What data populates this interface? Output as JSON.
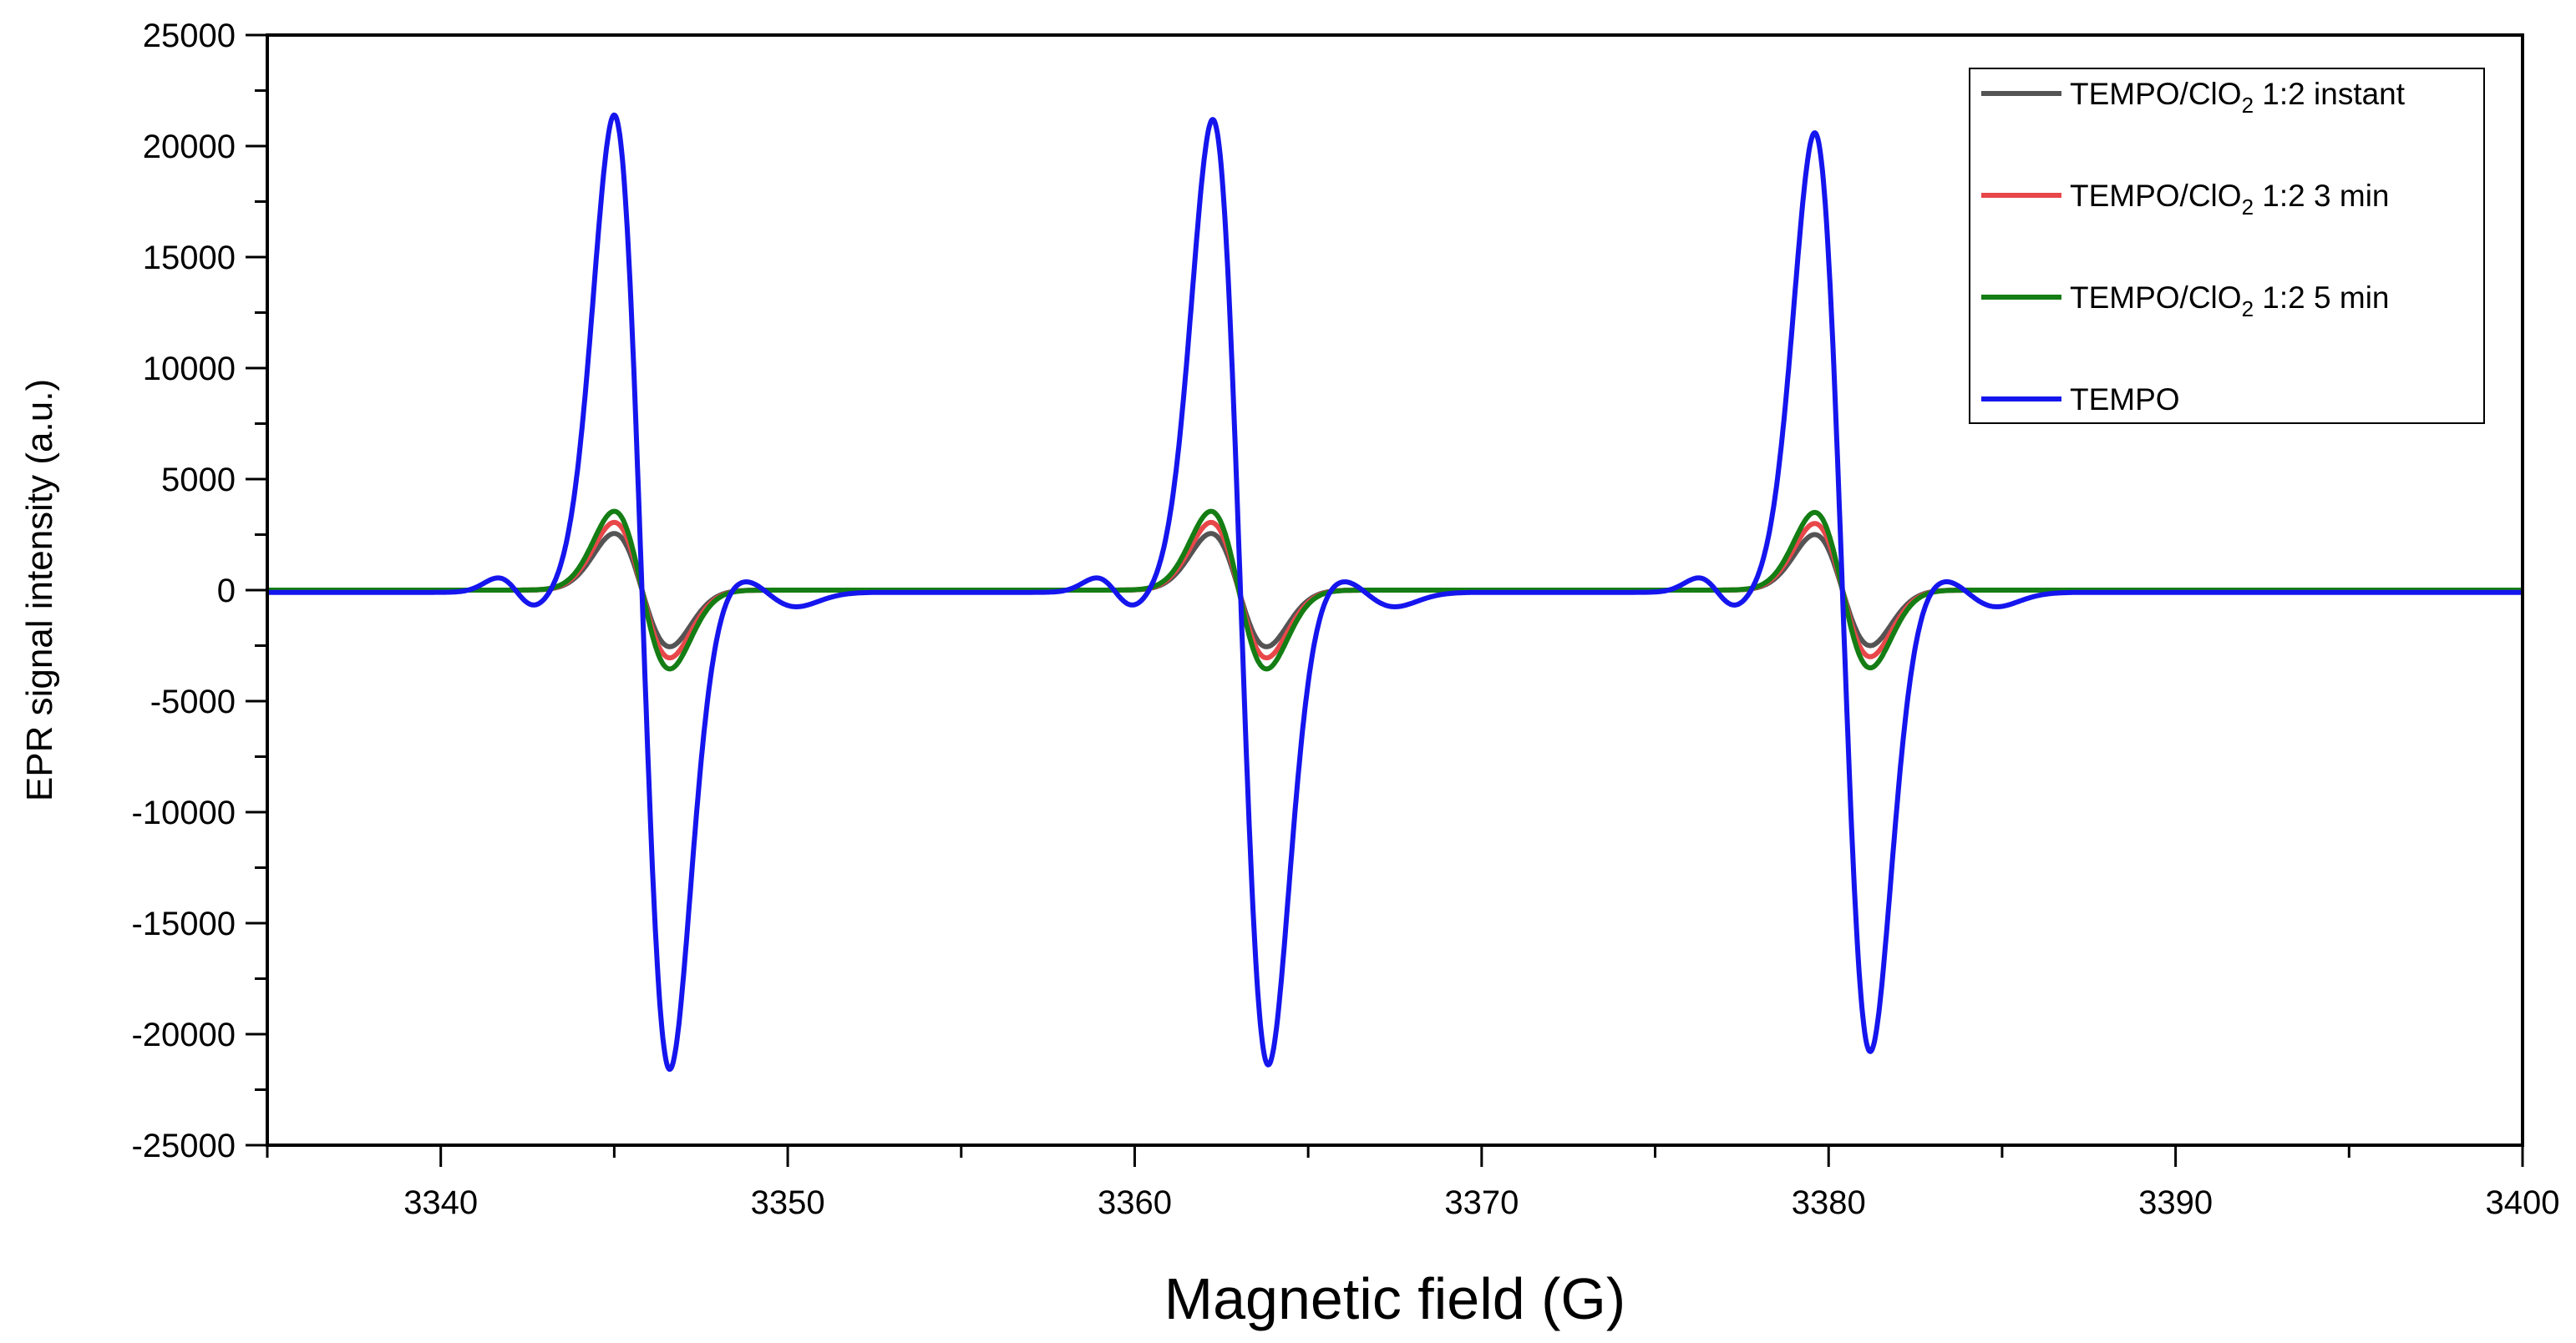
{
  "chart_data": {
    "type": "line",
    "title": "",
    "xlabel": "Magnetic field (G)",
    "ylabel": "EPR signal intensity (a.u.)",
    "xlim": [
      3335,
      3400
    ],
    "ylim": [
      -25000,
      25000
    ],
    "xticks": [
      3340,
      3350,
      3360,
      3370,
      3380,
      3390,
      3400
    ],
    "xtick_labels": [
      "3340",
      "3350",
      "3360",
      "3370",
      "3380",
      "3390",
      "3400"
    ],
    "yticks": [
      -25000,
      -20000,
      -15000,
      -10000,
      -5000,
      0,
      5000,
      10000,
      15000,
      20000,
      25000
    ],
    "ytick_labels": [
      "-25000",
      "-20000",
      "-15000",
      "-10000",
      "-5000",
      "0",
      "5000",
      "10000",
      "15000",
      "20000",
      "25000"
    ],
    "grid": false,
    "legend_position": "top-right",
    "series": [
      {
        "name_main": "TEMPO/ClO",
        "name_sub": "2",
        "name_tail": " 1:2 instant",
        "color": "#545454",
        "baseline": 0,
        "lines": [
          {
            "center": 3345.8,
            "width": 0.8,
            "amp": 2550,
            "bump": 0
          },
          {
            "center": 3363.0,
            "width": 0.8,
            "amp": 2550,
            "bump": 0
          },
          {
            "center": 3380.4,
            "width": 0.8,
            "amp": 2500,
            "bump": 0
          }
        ]
      },
      {
        "name_main": "TEMPO/ClO",
        "name_sub": "2",
        "name_tail": " 1:2 3 min",
        "color": "#e8474a",
        "baseline": 0,
        "lines": [
          {
            "center": 3345.8,
            "width": 0.8,
            "amp": 3050,
            "bump": 0
          },
          {
            "center": 3363.0,
            "width": 0.8,
            "amp": 3050,
            "bump": 0
          },
          {
            "center": 3380.4,
            "width": 0.8,
            "amp": 3000,
            "bump": 0
          }
        ]
      },
      {
        "name_main": "TEMPO/ClO",
        "name_sub": "2",
        "name_tail": " 1:2 5 min",
        "color": "#147d14",
        "baseline": 0,
        "lines": [
          {
            "center": 3345.8,
            "width": 0.8,
            "amp": 3550,
            "bump": 0
          },
          {
            "center": 3363.0,
            "width": 0.8,
            "amp": 3550,
            "bump": 0
          },
          {
            "center": 3380.4,
            "width": 0.8,
            "amp": 3500,
            "bump": 0
          }
        ]
      },
      {
        "name_main": "TEMPO",
        "name_sub": "",
        "name_tail": "",
        "color": "#1515ee",
        "baseline": -100,
        "lines": [
          {
            "center": 3345.8,
            "width": 0.8,
            "amp": 21500,
            "bump": 650
          },
          {
            "center": 3363.05,
            "width": 0.8,
            "amp": 21300,
            "bump": 650
          },
          {
            "center": 3380.4,
            "width": 0.8,
            "amp": 20700,
            "bump": 650
          }
        ]
      }
    ]
  }
}
